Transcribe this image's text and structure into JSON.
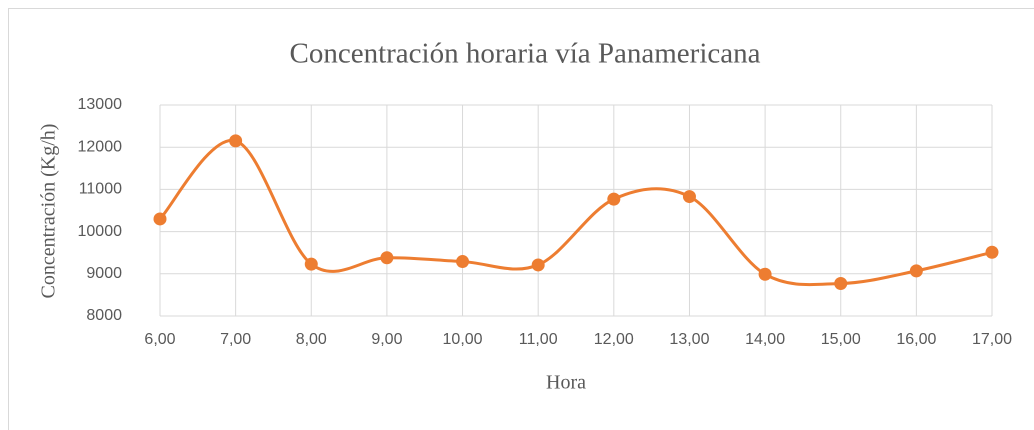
{
  "chart_data": {
    "type": "line",
    "title": "Concentración horaria vía Panamericana",
    "x_label": "Hora",
    "y_label": "Concentración (Kg/h)",
    "categories": [
      "6,00",
      "7,00",
      "8,00",
      "9,00",
      "10,00",
      "11,00",
      "12,00",
      "13,00",
      "14,00",
      "15,00",
      "16,00",
      "17,00"
    ],
    "series": [
      {
        "name": "Concentración",
        "color": "#ed7d31",
        "values": [
          10300,
          12150,
          9230,
          9380,
          9290,
          9210,
          10770,
          10830,
          8990,
          8770,
          9070,
          9510
        ]
      }
    ],
    "ylim": [
      8000,
      13000
    ],
    "yticks": [
      8000,
      9000,
      10000,
      11000,
      12000,
      13000
    ],
    "grid": true,
    "smooth": true
  }
}
